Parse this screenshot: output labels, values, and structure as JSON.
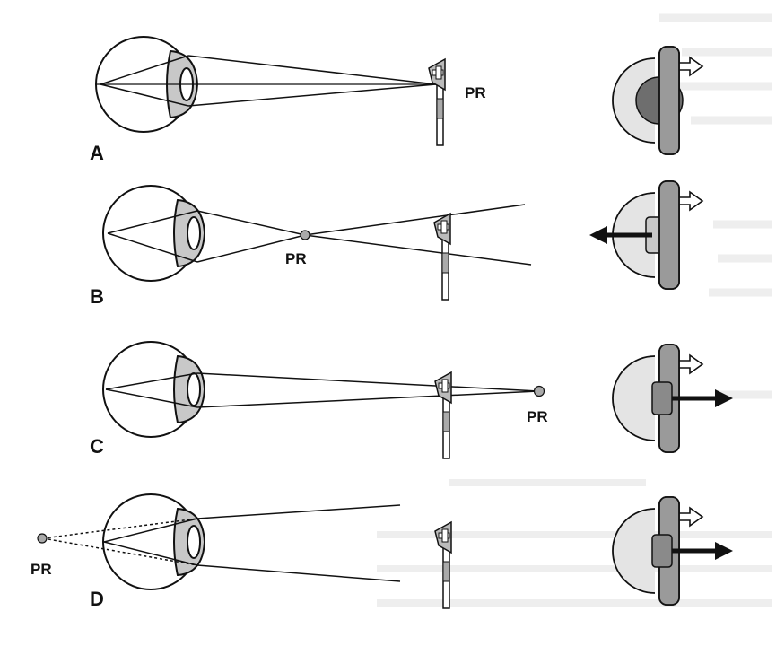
{
  "panels": [
    {
      "label": "A",
      "pr_label": "PR"
    },
    {
      "label": "B",
      "pr_label": "PR"
    },
    {
      "label": "C",
      "pr_label": "PR"
    },
    {
      "label": "D",
      "pr_label": "PR"
    }
  ],
  "colors": {
    "line": "#111111",
    "lens_gray": "#c8c8c8",
    "pupil_dark": "#6e6e6e",
    "lens_body": "#9a9a9a",
    "iris_light": "#e4e4e4",
    "background_text": "#cfcfcf"
  },
  "icons": [
    "eye-icon",
    "refraction-target-icon",
    "lens-diagram-icon",
    "arrow-icon"
  ]
}
